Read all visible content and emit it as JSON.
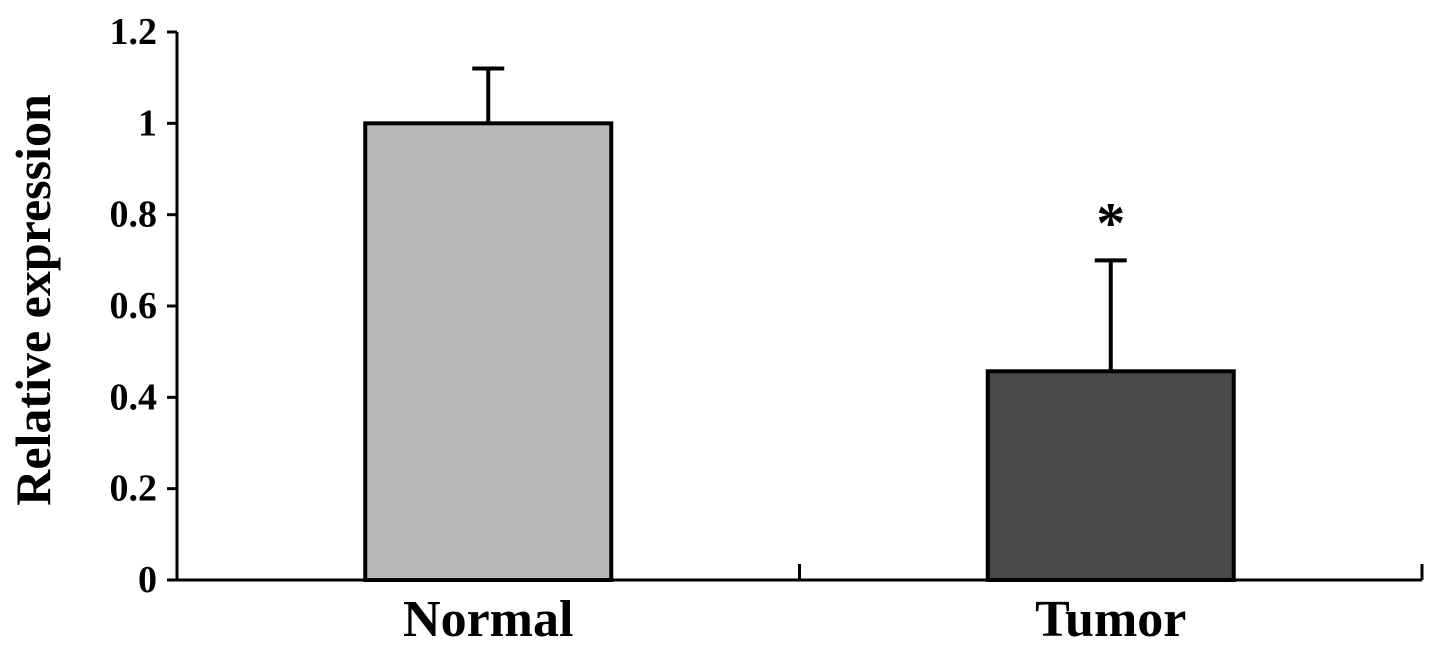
{
  "chart_data": {
    "type": "bar",
    "title": "",
    "xlabel": "",
    "ylabel": "Relative expression",
    "categories": [
      "Normal",
      "Tumor"
    ],
    "values": [
      1.0,
      0.457
    ],
    "error_upper": [
      0.12,
      0.243
    ],
    "bar_colors": [
      "#b9b9b9",
      "#4a4a4a"
    ],
    "annotations": [
      "",
      "*"
    ],
    "ylim": [
      0,
      1.2
    ],
    "yticks": [
      0,
      0.2,
      0.4,
      0.6,
      0.8,
      1,
      1.2
    ],
    "ytick_labels": [
      "0",
      "0.2",
      "0.4",
      "0.6",
      "0.8",
      "1",
      "1.2"
    ],
    "grid": false,
    "legend": "none"
  }
}
